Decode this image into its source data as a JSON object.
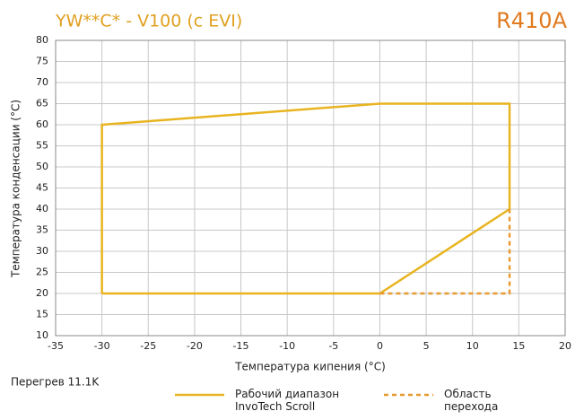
{
  "chart_data": {
    "type": "line",
    "title": "YW**C* - V100 (c EVI)",
    "subtitle": "R410A",
    "x_label": "Температура кипения (°C)",
    "y_label": "Температура конденсации (°C)",
    "annotation": "Перегрев 11.1K",
    "series": [
      {
        "name": "Рабочий диапазон InvoTech Scroll",
        "color": "#e8b420",
        "style": "solid",
        "x": [
          -30,
          -30,
          0,
          14,
          14,
          0,
          -30
        ],
        "values": [
          20,
          60,
          65,
          65,
          40,
          20,
          20
        ]
      },
      {
        "name": "Область перехода",
        "color": "#e89a30",
        "style": "dashed",
        "x": [
          0,
          14,
          14
        ],
        "values": [
          20,
          20,
          40
        ]
      }
    ],
    "xlim": [
      -35,
      20
    ],
    "xticks": [
      -35,
      -30,
      -25,
      -20,
      -15,
      -10,
      -5,
      0,
      5,
      10,
      15,
      20
    ],
    "ylim": [
      10,
      80
    ],
    "yticks": [
      10,
      15,
      20,
      25,
      30,
      35,
      40,
      45,
      50,
      55,
      60,
      65,
      70,
      75,
      80
    ],
    "grid": true
  }
}
